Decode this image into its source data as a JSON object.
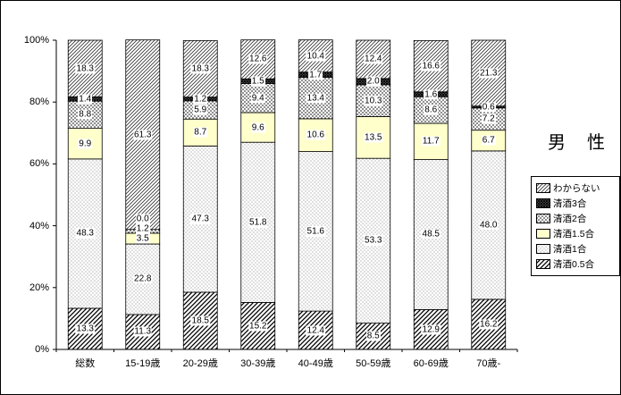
{
  "title": "男　性",
  "chart_data": {
    "type": "bar",
    "stacked": true,
    "percent": true,
    "title": "男　性",
    "categories": [
      "総数",
      "15-19歳",
      "20-29歳",
      "30-39歳",
      "40-49歳",
      "50-59歳",
      "60-69歳",
      "70歳-"
    ],
    "stack_order": "bottom-to-top",
    "legend_order": "reverse-of-series",
    "series": [
      {
        "name": "清酒0.5合",
        "pattern": "diag-thick",
        "values": [
          13.3,
          11.3,
          18.5,
          15.2,
          12.4,
          8.5,
          12.9,
          16.2
        ]
      },
      {
        "name": "清酒1合",
        "pattern": "dots-light",
        "values": [
          48.3,
          22.8,
          47.3,
          51.8,
          51.6,
          53.3,
          48.5,
          48.0
        ]
      },
      {
        "name": "清酒1.5合",
        "pattern": "solid-yellow",
        "values": [
          9.9,
          3.5,
          8.7,
          9.6,
          10.6,
          13.5,
          11.7,
          6.7
        ]
      },
      {
        "name": "清酒2合",
        "pattern": "dots-medium",
        "values": [
          8.8,
          1.2,
          5.9,
          9.4,
          13.4,
          10.3,
          8.6,
          7.2
        ]
      },
      {
        "name": "清酒3合",
        "pattern": "dense-dark",
        "values": [
          1.4,
          0.0,
          1.2,
          1.5,
          1.7,
          2.0,
          1.6,
          0.6
        ]
      },
      {
        "name": "わからない",
        "pattern": "diag-thin",
        "values": [
          18.3,
          61.3,
          18.3,
          12.6,
          10.4,
          12.4,
          16.6,
          21.3
        ]
      }
    ],
    "yticks": [
      "0%",
      "20%",
      "40%",
      "60%",
      "80%",
      "100%"
    ],
    "ylim": [
      0,
      100
    ],
    "grid": false,
    "legend_position": "right",
    "colors": {
      "yellow_fill": "#FFFFCC",
      "axis": "#000000",
      "label_background": "#FFFFFF"
    }
  }
}
